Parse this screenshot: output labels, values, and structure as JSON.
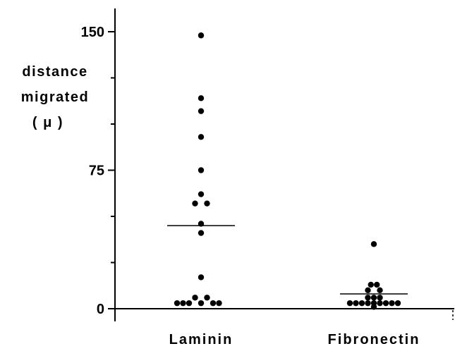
{
  "chart_data": {
    "type": "scatter",
    "title": "",
    "ylabel_lines": [
      "distance",
      "migrated",
      "( μ )"
    ],
    "xlabel": "",
    "ylim": [
      0,
      150
    ],
    "yticks": [
      0,
      75,
      150
    ],
    "ytick_labels": [
      "0",
      "75",
      "150"
    ],
    "minor_tick_step": 25,
    "grid": false,
    "legend": "none",
    "categories": [
      "Laminin",
      "Fibronectin"
    ],
    "series": [
      {
        "category": "Laminin",
        "mean": 45,
        "points": [
          {
            "y": 148,
            "offset": 0
          },
          {
            "y": 114,
            "offset": 0
          },
          {
            "y": 107,
            "offset": 0
          },
          {
            "y": 93,
            "offset": 0
          },
          {
            "y": 75,
            "offset": 0
          },
          {
            "y": 62,
            "offset": 0
          },
          {
            "y": 57,
            "offset": -1
          },
          {
            "y": 57,
            "offset": 1
          },
          {
            "y": 46,
            "offset": 0
          },
          {
            "y": 41,
            "offset": 0
          },
          {
            "y": 17,
            "offset": 0
          },
          {
            "y": 6,
            "offset": -1
          },
          {
            "y": 6,
            "offset": 1
          },
          {
            "y": 3,
            "offset": -4
          },
          {
            "y": 3,
            "offset": -3
          },
          {
            "y": 3,
            "offset": -2
          },
          {
            "y": 3,
            "offset": 0
          },
          {
            "y": 3,
            "offset": 2
          },
          {
            "y": 3,
            "offset": 3
          }
        ]
      },
      {
        "category": "Fibronectin",
        "mean": 8,
        "points": [
          {
            "y": 35,
            "offset": 0
          },
          {
            "y": 13,
            "offset": -0.5
          },
          {
            "y": 13,
            "offset": 0.5
          },
          {
            "y": 10,
            "offset": -1
          },
          {
            "y": 10,
            "offset": 1
          },
          {
            "y": 6,
            "offset": -1
          },
          {
            "y": 6,
            "offset": 0
          },
          {
            "y": 6,
            "offset": 1
          },
          {
            "y": 3,
            "offset": -4
          },
          {
            "y": 3,
            "offset": -3
          },
          {
            "y": 3,
            "offset": -2
          },
          {
            "y": 3,
            "offset": -1
          },
          {
            "y": 3,
            "offset": 0
          },
          {
            "y": 3,
            "offset": 1
          },
          {
            "y": 3,
            "offset": 2
          },
          {
            "y": 3,
            "offset": 3
          },
          {
            "y": 3,
            "offset": 4
          },
          {
            "y": 1,
            "offset": 0
          }
        ]
      }
    ]
  },
  "colors": {
    "ink": "#000000",
    "background": "#ffffff"
  }
}
